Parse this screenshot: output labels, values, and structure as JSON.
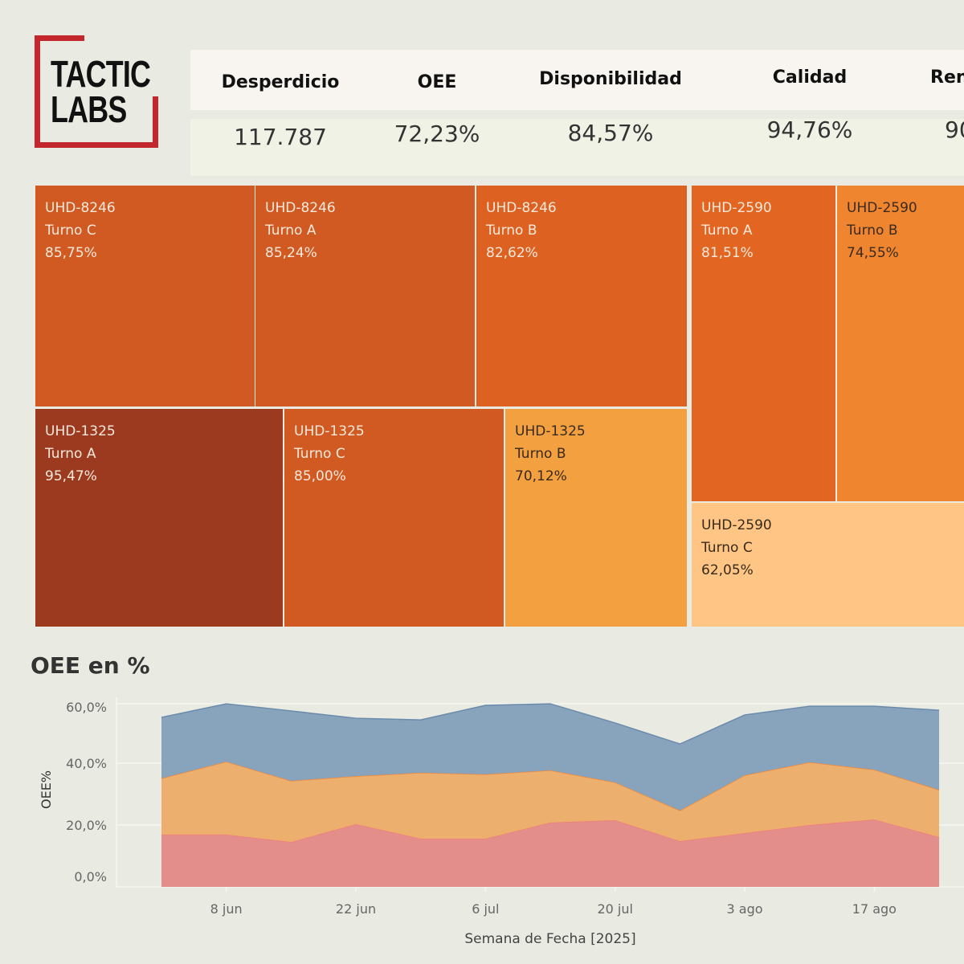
{
  "logo": {
    "line1": "TACTIC",
    "line2": "LABS",
    "color": "#c1272d"
  },
  "kpis": {
    "headers": [
      "Desperdicio",
      "OEE",
      "Disponibilidad",
      "Calidad",
      "Ren"
    ],
    "values": [
      "117.787",
      "72,23%",
      "84,57%",
      "94,76%",
      "90"
    ]
  },
  "chart_title": "OEE en %",
  "chart_data": [
    {
      "type": "treemap",
      "cells": [
        {
          "machine": "UHD-8246",
          "shift": "Turno C",
          "value": "85,75%",
          "color": "#d05a22"
        },
        {
          "machine": "UHD-8246",
          "shift": "Turno A",
          "value": "85,24%",
          "color": "#d05a22"
        },
        {
          "machine": "UHD-8246",
          "shift": "Turno B",
          "value": "82,62%",
          "color": "#dd6222"
        },
        {
          "machine": "UHD-1325",
          "shift": "Turno A",
          "value": "95,47%",
          "color": "#9c3a20"
        },
        {
          "machine": "UHD-1325",
          "shift": "Turno C",
          "value": "85,00%",
          "color": "#d05a22"
        },
        {
          "machine": "UHD-1325",
          "shift": "Turno B",
          "value": "70,12%",
          "color": "#f3a040"
        },
        {
          "machine": "UHD-2590",
          "shift": "Turno A",
          "value": "81,51%",
          "color": "#e26621"
        },
        {
          "machine": "UHD-2590",
          "shift": "Turno B",
          "value": "74,55%",
          "color": "#f08530"
        },
        {
          "machine": "UHD-2590",
          "shift": "Turno C",
          "value": "62,05%",
          "color": "#fec584"
        }
      ]
    },
    {
      "type": "area",
      "stacked": true,
      "title": "OEE en %",
      "xlabel": "Semana de Fecha [2025]",
      "ylabel": "OEE%",
      "x": [
        "2025-06-01",
        "2025-06-08",
        "2025-06-15",
        "2025-06-22",
        "2025-06-29",
        "2025-07-06",
        "2025-07-13",
        "2025-07-20",
        "2025-07-27",
        "2025-08-03",
        "2025-08-10",
        "2025-08-17",
        "2025-08-24"
      ],
      "xticks": [
        "8 jun",
        "22 jun",
        "6 jul",
        "20 jul",
        "3 ago",
        "17 ago"
      ],
      "yticks": [
        "0,0%",
        "20,0%",
        "40,0%",
        "60,0%"
      ],
      "ylim": [
        0,
        61
      ],
      "grid": true,
      "series": [
        {
          "values": [
            16.9,
            16.9,
            14.5,
            20.3,
            15.6,
            15.6,
            20.8,
            21.6,
            14.8,
            17.4,
            20.0,
            21.8,
            16.1
          ],
          "color": "#e48e8c",
          "line": "#f07e7a"
        },
        {
          "values": [
            18.2,
            23.6,
            19.8,
            15.5,
            21.3,
            20.8,
            16.9,
            12.2,
            9.9,
            18.7,
            20.3,
            16.1,
            15.3
          ],
          "color": "#edaf6d",
          "line": "#f0883a"
        },
        {
          "values": [
            19.7,
            18.7,
            22.6,
            18.7,
            17.1,
            22.3,
            21.5,
            19.2,
            21.5,
            19.5,
            18.1,
            20.5,
            25.7
          ],
          "color": "#88a4bd",
          "line": "#6a8bab"
        }
      ]
    }
  ]
}
